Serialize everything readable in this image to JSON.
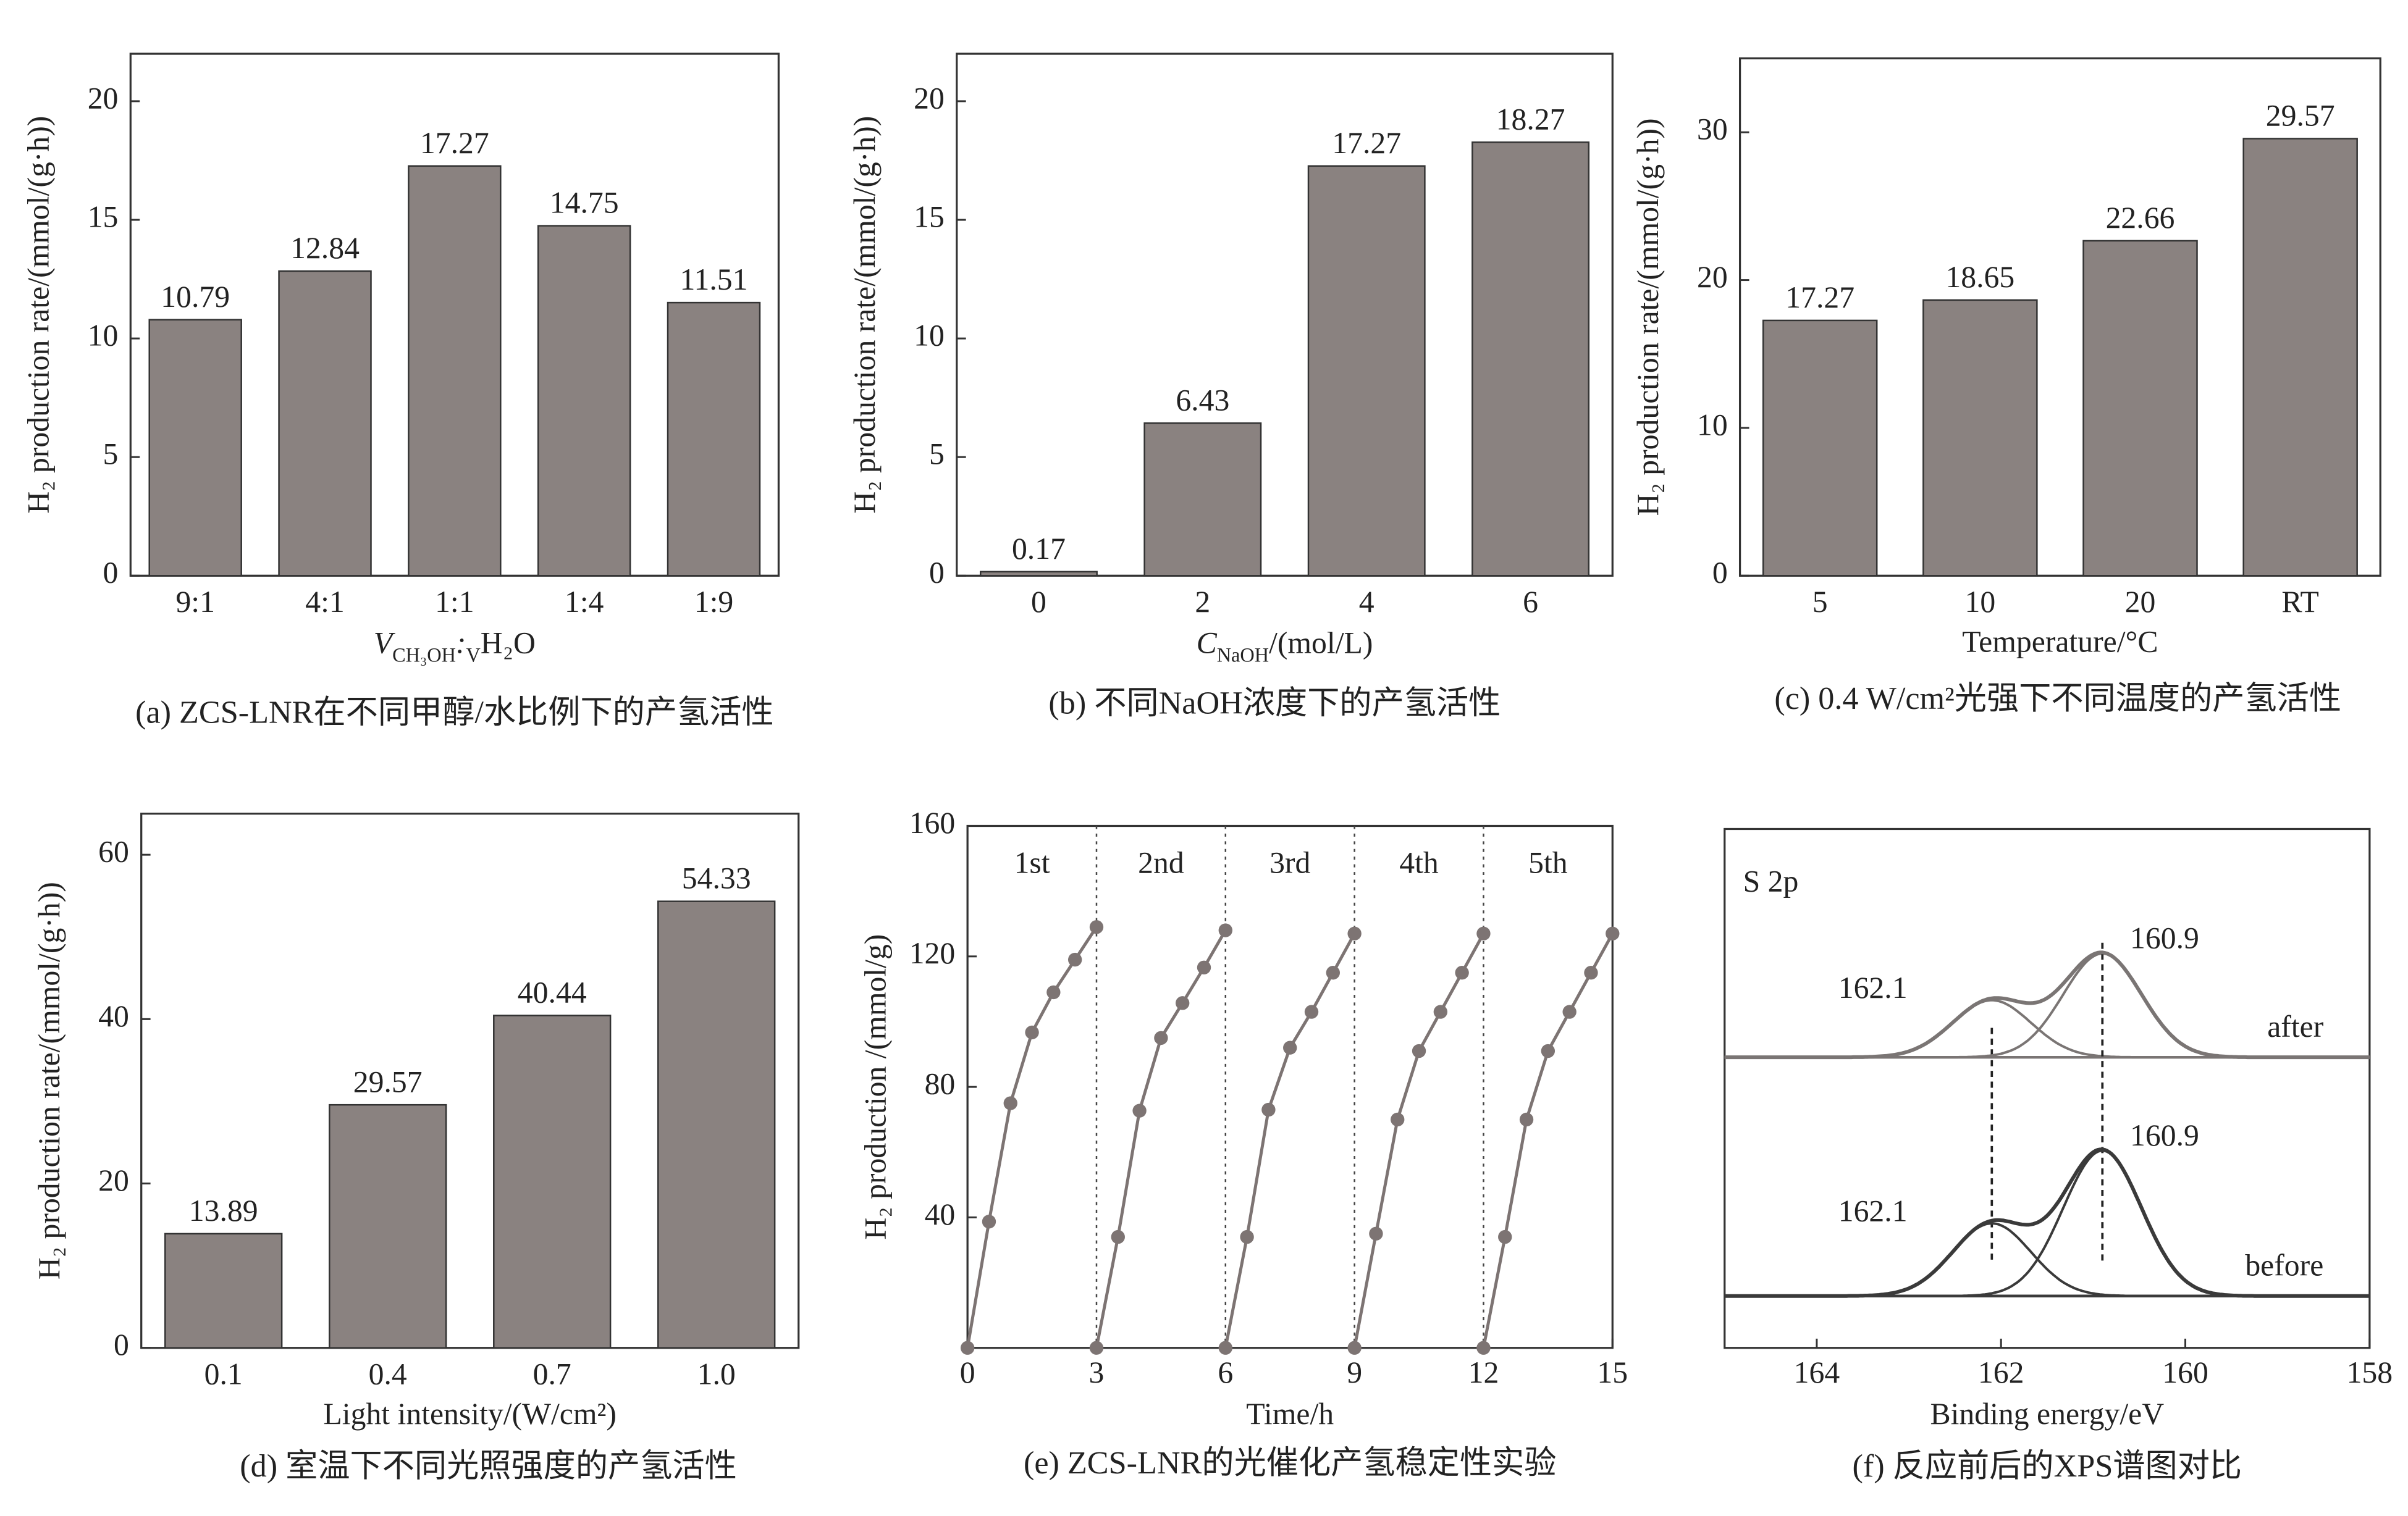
{
  "chart_data": [
    {
      "type": "bar",
      "categories": [
        "9:1",
        "4:1",
        "1:1",
        "1:4",
        "1:9"
      ],
      "values": [
        10.79,
        12.84,
        17.27,
        14.75,
        11.51
      ],
      "color": "#8a8280",
      "ylim": [
        0,
        22
      ],
      "yticks": [
        0,
        5,
        10,
        15,
        20
      ],
      "y_label": "H₂ production rate/(mmol/(g·h))",
      "x_label": [
        "V",
        "CH₃OH",
        ":",
        "V",
        "H₂O"
      ],
      "caption": "(a) ZCS-LNR在不同甲醇/水比例下的产氢活性"
    },
    {
      "type": "bar",
      "categories": [
        "0",
        "2",
        "4",
        "6"
      ],
      "values": [
        0.17,
        6.43,
        17.27,
        18.27
      ],
      "color": "#8a8280",
      "ylim": [
        0,
        22
      ],
      "yticks": [
        0,
        5,
        10,
        15,
        20
      ],
      "y_label": "H₂ production rate/(mmol/(g·h))",
      "x_label": [
        "C",
        "NaOH",
        "/(mol/L)"
      ],
      "caption": "(b) 不同NaOH浓度下的产氢活性"
    },
    {
      "type": "bar",
      "categories": [
        "5",
        "10",
        "20",
        "RT"
      ],
      "values": [
        17.27,
        18.65,
        22.66,
        29.57
      ],
      "color": "#8a8280",
      "ylim": [
        0,
        35
      ],
      "yticks": [
        0,
        10,
        20,
        30
      ],
      "y_label": "H₂ production rate/(mmol/(g·h))",
      "x_label": "Temperature/°C",
      "caption": "(c) 0.4 W/cm²光强下不同温度的产氢活性"
    },
    {
      "type": "bar",
      "categories": [
        "0.1",
        "0.4",
        "0.7",
        "1.0"
      ],
      "values": [
        13.89,
        29.57,
        40.44,
        54.33
      ],
      "color": "#8a8280",
      "ylim": [
        0,
        65
      ],
      "yticks": [
        0,
        20,
        40,
        60
      ],
      "y_label": "H₂ production rate/(mmol/(g·h))",
      "x_label": "Light intensity/(W/cm²)",
      "caption": "(d) 室温下不同光照强度的产氢活性"
    },
    {
      "type": "line",
      "color": "#7d7473",
      "series": [
        {
          "x": [
            0,
            0.5,
            1,
            1.5,
            2,
            2.5,
            3
          ],
          "values": [
            0,
            38.7,
            75,
            96.7,
            109,
            119,
            129
          ]
        },
        {
          "x": [
            3,
            3.5,
            4,
            4.5,
            5,
            5.5,
            6
          ],
          "values": [
            0,
            34,
            72.7,
            95,
            105.7,
            116.6,
            128
          ]
        },
        {
          "x": [
            6,
            6.5,
            7,
            7.5,
            8,
            8.5,
            9
          ],
          "values": [
            0,
            34,
            73,
            92,
            103,
            115,
            127
          ]
        },
        {
          "x": [
            9,
            9.5,
            10,
            10.5,
            11,
            11.5,
            12
          ],
          "values": [
            0,
            35,
            70,
            91,
            103,
            115,
            127
          ]
        },
        {
          "x": [
            12,
            12.5,
            13,
            13.5,
            14,
            14.5,
            15
          ],
          "values": [
            0,
            34,
            70,
            91,
            103,
            115,
            127
          ]
        }
      ],
      "xlim": [
        0,
        15
      ],
      "xticks": [
        0,
        3,
        6,
        9,
        12,
        15
      ],
      "ylim": [
        0,
        160
      ],
      "yticks": [
        40,
        80,
        120,
        160
      ],
      "dividers": [
        3,
        6,
        9,
        12
      ],
      "annotations": [
        "1st",
        "2nd",
        "3rd",
        "4th",
        "5th"
      ],
      "y_label": "H₂ production /(mmol/g)",
      "x_label": "Time/h",
      "caption": "(e) ZCS-LNR的光催化产氢稳定性实验"
    },
    {
      "type": "xps",
      "xlim": [
        165,
        158
      ],
      "xticks": [
        164,
        162,
        160,
        158
      ],
      "ylim": [
        0,
        100
      ],
      "annotation": "S 2p",
      "series": [
        {
          "name": "after",
          "color": "#7a7574",
          "baseline": 56,
          "peaks": [
            {
              "center": 162.1,
              "height": 11,
              "fwhm": 1.0
            },
            {
              "center": 160.9,
              "height": 20,
              "fwhm": 1.0
            }
          ]
        },
        {
          "name": "before",
          "color": "#3a3a3a",
          "baseline": 10,
          "peaks": [
            {
              "center": 162.1,
              "height": 14,
              "fwhm": 1.0
            },
            {
              "center": 160.9,
              "height": 28,
              "fwhm": 1.0
            }
          ]
        }
      ],
      "x_label": "Binding energy/eV",
      "caption": "(f) 反应前后的XPS谱图对比"
    }
  ]
}
